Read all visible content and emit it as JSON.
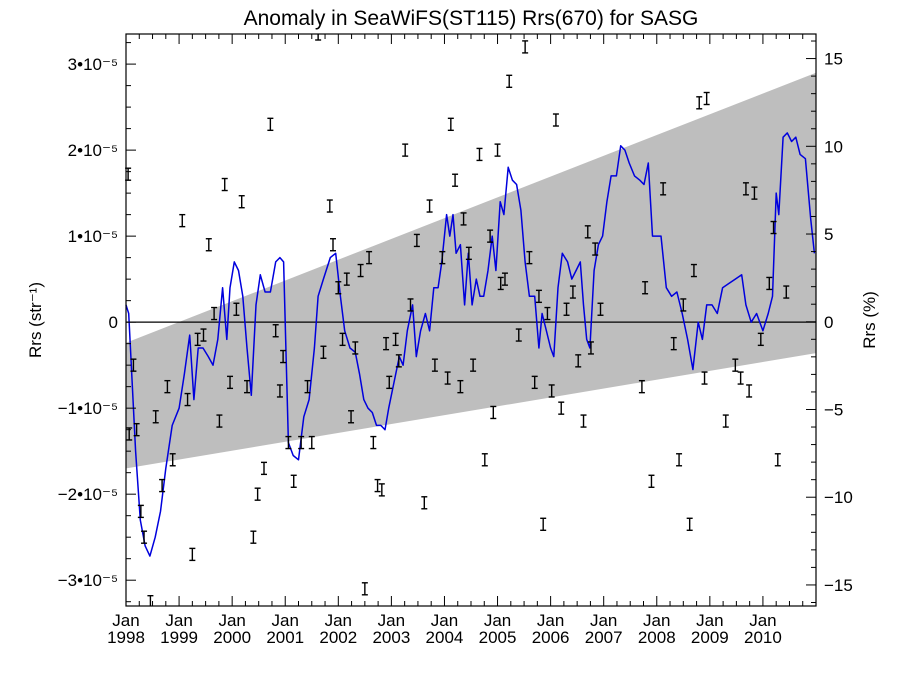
{
  "chart_data": {
    "type": "line",
    "title": "Anomaly in SeaWiFS(ST115) Rrs(670) for SASG",
    "ylabel_left": "Rrs (str⁻¹)",
    "ylabel_right": "Rrs (%)",
    "xlabel": "",
    "xlim": [
      1998.0,
      2011.0
    ],
    "ylim": [
      -3.3e-05,
      3.35e-05
    ],
    "ylim_right_percent": [
      -16.2,
      16.4
    ],
    "grid": false,
    "y_ticks_left": [
      {
        "value": -3e-05,
        "label": "−3•10⁻⁵"
      },
      {
        "value": -2e-05,
        "label": "−2•10⁻⁵"
      },
      {
        "value": -1e-05,
        "label": "−1•10⁻⁵"
      },
      {
        "value": 0,
        "label": "0"
      },
      {
        "value": 1e-05,
        "label": "1•10⁻⁵"
      },
      {
        "value": 2e-05,
        "label": "2•10⁻⁵"
      },
      {
        "value": 3e-05,
        "label": "3•10⁻⁵"
      }
    ],
    "y_ticks_right": [
      {
        "value": -15,
        "label": "−15"
      },
      {
        "value": -10,
        "label": "−10"
      },
      {
        "value": -5,
        "label": "−5"
      },
      {
        "value": 0,
        "label": "0"
      },
      {
        "value": 5,
        "label": "5"
      },
      {
        "value": 10,
        "label": "10"
      },
      {
        "value": 15,
        "label": "15"
      }
    ],
    "x_ticks": [
      {
        "value": 1998,
        "month": "Jan",
        "year": "1998"
      },
      {
        "value": 1999,
        "month": "Jan",
        "year": "1999"
      },
      {
        "value": 2000,
        "month": "Jan",
        "year": "2000"
      },
      {
        "value": 2001,
        "month": "Jan",
        "year": "2001"
      },
      {
        "value": 2002,
        "month": "Jan",
        "year": "2002"
      },
      {
        "value": 2003,
        "month": "Jan",
        "year": "2003"
      },
      {
        "value": 2004,
        "month": "Jan",
        "year": "2004"
      },
      {
        "value": 2005,
        "month": "Jan",
        "year": "2005"
      },
      {
        "value": 2006,
        "month": "Jan",
        "year": "2006"
      },
      {
        "value": 2007,
        "month": "Jan",
        "year": "2007"
      },
      {
        "value": 2008,
        "month": "Jan",
        "year": "2008"
      },
      {
        "value": 2009,
        "month": "Jan",
        "year": "2009"
      },
      {
        "value": 2010,
        "month": "Jan",
        "year": "2010"
      }
    ],
    "envelope": {
      "color": "#bebebe",
      "start": {
        "x": 1998.0,
        "upper": -2.4e-06,
        "lower": -1.7e-05
      },
      "end": {
        "x": 2011.0,
        "upper": 2.9e-05,
        "lower": -3.6e-06
      }
    },
    "zero_line": true,
    "line_series": {
      "color": "#0000dd",
      "points": [
        [
          1998.0,
          2e-06
        ],
        [
          1998.05,
          1e-06
        ],
        [
          1998.1,
          -5e-06
        ],
        [
          1998.18,
          -1.5e-05
        ],
        [
          1998.27,
          -2.3e-05
        ],
        [
          1998.36,
          -2.6e-05
        ],
        [
          1998.45,
          -2.72e-05
        ],
        [
          1998.55,
          -2.5e-05
        ],
        [
          1998.65,
          -2.2e-05
        ],
        [
          1998.75,
          -1.7e-05
        ],
        [
          1998.87,
          -1.2e-05
        ],
        [
          1999.0,
          -1e-05
        ],
        [
          1999.1,
          -6e-06
        ],
        [
          1999.2,
          -1.5e-06
        ],
        [
          1999.28,
          -9e-06
        ],
        [
          1999.36,
          -3e-06
        ],
        [
          1999.45,
          -3e-06
        ],
        [
          1999.55,
          -4e-06
        ],
        [
          1999.64,
          -5e-06
        ],
        [
          1999.73,
          -2e-06
        ],
        [
          1999.82,
          4e-06
        ],
        [
          1999.9,
          -2e-06
        ],
        [
          1999.96,
          4e-06
        ],
        [
          2000.04,
          7e-06
        ],
        [
          2000.12,
          6e-06
        ],
        [
          2000.2,
          3e-06
        ],
        [
          2000.28,
          -3e-06
        ],
        [
          2000.36,
          -8.5e-06
        ],
        [
          2000.45,
          2e-06
        ],
        [
          2000.53,
          5.5e-06
        ],
        [
          2000.62,
          3.5e-06
        ],
        [
          2000.72,
          3.5e-06
        ],
        [
          2000.82,
          7e-06
        ],
        [
          2000.9,
          7.5e-06
        ],
        [
          2000.97,
          7e-06
        ],
        [
          2001.06,
          -1.4e-05
        ],
        [
          2001.15,
          -1.55e-05
        ],
        [
          2001.25,
          -1.6e-05
        ],
        [
          2001.35,
          -1.1e-05
        ],
        [
          2001.45,
          -9e-06
        ],
        [
          2001.55,
          -3e-06
        ],
        [
          2001.62,
          3e-06
        ],
        [
          2001.72,
          5e-06
        ],
        [
          2001.85,
          7.5e-06
        ],
        [
          2001.95,
          8e-06
        ],
        [
          2002.04,
          3e-06
        ],
        [
          2002.12,
          -1e-06
        ],
        [
          2002.22,
          -3e-06
        ],
        [
          2002.32,
          -3.5e-06
        ],
        [
          2002.4,
          -6e-06
        ],
        [
          2002.48,
          -9e-06
        ],
        [
          2002.56,
          -1e-05
        ],
        [
          2002.64,
          -1.05e-05
        ],
        [
          2002.72,
          -1.2e-05
        ],
        [
          2002.8,
          -1.2e-05
        ],
        [
          2002.88,
          -1.25e-05
        ],
        [
          2002.95,
          -1e-05
        ],
        [
          2003.05,
          -7e-06
        ],
        [
          2003.15,
          -4e-06
        ],
        [
          2003.22,
          -5e-06
        ],
        [
          2003.3,
          -1e-06
        ],
        [
          2003.4,
          2e-06
        ],
        [
          2003.47,
          -4e-06
        ],
        [
          2003.55,
          -1e-06
        ],
        [
          2003.64,
          1e-06
        ],
        [
          2003.72,
          -1e-06
        ],
        [
          2003.8,
          4e-06
        ],
        [
          2003.88,
          4e-06
        ],
        [
          2003.95,
          7e-06
        ],
        [
          2004.04,
          1.25e-05
        ],
        [
          2004.1,
          1e-05
        ],
        [
          2004.16,
          1.25e-05
        ],
        [
          2004.22,
          8e-06
        ],
        [
          2004.3,
          9e-06
        ],
        [
          2004.38,
          2e-06
        ],
        [
          2004.45,
          8e-06
        ],
        [
          2004.52,
          2e-06
        ],
        [
          2004.6,
          5e-06
        ],
        [
          2004.67,
          3e-06
        ],
        [
          2004.74,
          3e-06
        ],
        [
          2004.82,
          6e-06
        ],
        [
          2004.9,
          1e-05
        ],
        [
          2004.97,
          6e-06
        ],
        [
          2005.05,
          1.4e-05
        ],
        [
          2005.12,
          1.25e-05
        ],
        [
          2005.2,
          1.8e-05
        ],
        [
          2005.28,
          1.65e-05
        ],
        [
          2005.36,
          1.6e-05
        ],
        [
          2005.44,
          1.3e-05
        ],
        [
          2005.52,
          7e-06
        ],
        [
          2005.6,
          3e-06
        ],
        [
          2005.7,
          3e-06
        ],
        [
          2005.78,
          -3e-06
        ],
        [
          2005.84,
          1e-06
        ],
        [
          2005.92,
          -1e-06
        ],
        [
          2006.0,
          -3e-06
        ],
        [
          2006.06,
          -4e-06
        ],
        [
          2006.14,
          4e-06
        ],
        [
          2006.22,
          8e-06
        ],
        [
          2006.32,
          7e-06
        ],
        [
          2006.4,
          5e-06
        ],
        [
          2006.48,
          6e-06
        ],
        [
          2006.56,
          7e-06
        ],
        [
          2006.62,
          2e-06
        ],
        [
          2006.68,
          -2e-06
        ],
        [
          2006.74,
          -3e-06
        ],
        [
          2006.82,
          6e-06
        ],
        [
          2006.9,
          9e-06
        ],
        [
          2006.98,
          1e-05
        ],
        [
          2007.06,
          1.4e-05
        ],
        [
          2007.14,
          1.7e-05
        ],
        [
          2007.24,
          1.7e-05
        ],
        [
          2007.32,
          2.05e-05
        ],
        [
          2007.4,
          2e-05
        ],
        [
          2007.48,
          1.85e-05
        ],
        [
          2007.58,
          1.7e-05
        ],
        [
          2007.68,
          1.65e-05
        ],
        [
          2007.76,
          1.6e-05
        ],
        [
          2007.84,
          1.85e-05
        ],
        [
          2007.92,
          1e-05
        ],
        [
          2008.0,
          1e-05
        ],
        [
          2008.08,
          1e-05
        ],
        [
          2008.18,
          4e-06
        ],
        [
          2008.28,
          3e-06
        ],
        [
          2008.38,
          3.5e-06
        ],
        [
          2008.48,
          1e-06
        ],
        [
          2008.58,
          -2e-06
        ],
        [
          2008.68,
          -5.5e-06
        ],
        [
          2008.78,
          0.0
        ],
        [
          2008.86,
          -2e-06
        ],
        [
          2008.94,
          2e-06
        ],
        [
          2009.04,
          2e-06
        ],
        [
          2009.14,
          1e-06
        ],
        [
          2009.24,
          4e-06
        ],
        [
          2009.36,
          4.5e-06
        ],
        [
          2009.48,
          5e-06
        ],
        [
          2009.6,
          5.5e-06
        ],
        [
          2009.68,
          2e-06
        ],
        [
          2009.78,
          0.0
        ],
        [
          2009.88,
          1e-06
        ],
        [
          2010.0,
          -1e-06
        ],
        [
          2010.1,
          1e-06
        ],
        [
          2010.18,
          3e-06
        ],
        [
          2010.25,
          1.5e-05
        ],
        [
          2010.3,
          1.25e-05
        ],
        [
          2010.38,
          2.15e-05
        ],
        [
          2010.46,
          2.2e-05
        ],
        [
          2010.54,
          2.1e-05
        ],
        [
          2010.62,
          2.15e-05
        ],
        [
          2010.7,
          1.95e-05
        ],
        [
          2010.8,
          1.9e-05
        ],
        [
          2010.9,
          1.2e-05
        ],
        [
          2010.97,
          8e-06
        ]
      ]
    },
    "error_points": {
      "color": "#000000",
      "points": [
        [
          1998.04,
          1.72e-05
        ],
        [
          1998.06,
          -1.3e-05
        ],
        [
          1998.14,
          -5e-06
        ],
        [
          1998.2,
          -1.25e-05
        ],
        [
          1998.28,
          -2.2e-05
        ],
        [
          1998.34,
          -2.5e-05
        ],
        [
          1998.46,
          -3.25e-05
        ],
        [
          1998.56,
          -1.1e-05
        ],
        [
          1998.68,
          -1.9e-05
        ],
        [
          1998.78,
          -7.5e-06
        ],
        [
          1998.88,
          -1.6e-05
        ],
        [
          1999.06,
          1.18e-05
        ],
        [
          1999.16,
          -9e-06
        ],
        [
          1999.25,
          -2.7e-05
        ],
        [
          1999.35,
          -2e-06
        ],
        [
          1999.46,
          -1.5e-06
        ],
        [
          1999.56,
          9e-06
        ],
        [
          1999.66,
          1e-06
        ],
        [
          1999.76,
          -1.15e-05
        ],
        [
          1999.86,
          1.6e-05
        ],
        [
          1999.96,
          -7e-06
        ],
        [
          2000.08,
          1.5e-06
        ],
        [
          2000.18,
          1.4e-05
        ],
        [
          2000.28,
          -7.5e-06
        ],
        [
          2000.4,
          -2.5e-05
        ],
        [
          2000.48,
          -2e-05
        ],
        [
          2000.6,
          -1.7e-05
        ],
        [
          2000.72,
          2.3e-05
        ],
        [
          2000.82,
          -1e-06
        ],
        [
          2000.9,
          -8e-06
        ],
        [
          2000.96,
          -4e-06
        ],
        [
          2001.06,
          -1.4e-05
        ],
        [
          2001.16,
          -1.85e-05
        ],
        [
          2001.3,
          -1.4e-05
        ],
        [
          2001.42,
          -7.5e-06
        ],
        [
          2001.5,
          -1.4e-05
        ],
        [
          2001.62,
          3.35e-05
        ],
        [
          2001.72,
          -3.5e-06
        ],
        [
          2001.84,
          1.35e-05
        ],
        [
          2001.9,
          9e-06
        ],
        [
          2002.0,
          4e-06
        ],
        [
          2002.08,
          -2e-06
        ],
        [
          2002.16,
          5e-06
        ],
        [
          2002.24,
          -1.1e-05
        ],
        [
          2002.32,
          -3e-06
        ],
        [
          2002.42,
          6e-06
        ],
        [
          2002.5,
          -3.1e-05
        ],
        [
          2002.58,
          7.5e-06
        ],
        [
          2002.66,
          -1.4e-05
        ],
        [
          2002.74,
          -1.9e-05
        ],
        [
          2002.82,
          -1.95e-05
        ],
        [
          2002.9,
          -2.5e-06
        ],
        [
          2002.96,
          -7e-06
        ],
        [
          2003.08,
          -2e-06
        ],
        [
          2003.14,
          -4.5e-06
        ],
        [
          2003.26,
          2e-05
        ],
        [
          2003.36,
          2e-06
        ],
        [
          2003.48,
          9.5e-06
        ],
        [
          2003.62,
          -2.1e-05
        ],
        [
          2003.72,
          1.35e-05
        ],
        [
          2003.82,
          -5e-06
        ],
        [
          2003.96,
          7.5e-06
        ],
        [
          2004.06,
          -6.5e-06
        ],
        [
          2004.12,
          2.3e-05
        ],
        [
          2004.2,
          1.65e-05
        ],
        [
          2004.3,
          -7.5e-06
        ],
        [
          2004.36,
          1.2e-05
        ],
        [
          2004.46,
          8e-06
        ],
        [
          2004.54,
          -5e-06
        ],
        [
          2004.66,
          1.95e-05
        ],
        [
          2004.76,
          -1.6e-05
        ],
        [
          2004.86,
          1e-05
        ],
        [
          2004.92,
          -1.05e-05
        ],
        [
          2005.0,
          2e-05
        ],
        [
          2005.06,
          4.5e-06
        ],
        [
          2005.14,
          5e-06
        ],
        [
          2005.22,
          2.8e-05
        ],
        [
          2005.4,
          -1.5e-06
        ],
        [
          2005.52,
          3.2e-05
        ],
        [
          2005.6,
          7.5e-06
        ],
        [
          2005.7,
          -7e-06
        ],
        [
          2005.78,
          3e-06
        ],
        [
          2005.86,
          -2.35e-05
        ],
        [
          2005.94,
          1e-06
        ],
        [
          2006.02,
          -8e-06
        ],
        [
          2006.1,
          2.35e-05
        ],
        [
          2006.2,
          -1e-05
        ],
        [
          2006.3,
          1.5e-06
        ],
        [
          2006.42,
          3.5e-06
        ],
        [
          2006.52,
          -4.5e-06
        ],
        [
          2006.62,
          -1.15e-05
        ],
        [
          2006.7,
          1.05e-05
        ],
        [
          2006.76,
          -3e-06
        ],
        [
          2006.84,
          8.5e-06
        ],
        [
          2006.94,
          1.5e-06
        ],
        [
          2007.72,
          -7.5e-06
        ],
        [
          2007.78,
          4e-06
        ],
        [
          2007.9,
          -1.85e-05
        ],
        [
          2008.12,
          1.55e-05
        ],
        [
          2008.32,
          -2.5e-06
        ],
        [
          2008.42,
          -1.6e-05
        ],
        [
          2008.5,
          2e-06
        ],
        [
          2008.62,
          -2.35e-05
        ],
        [
          2008.7,
          6e-06
        ],
        [
          2008.8,
          2.55e-05
        ],
        [
          2008.9,
          -6.5e-06
        ],
        [
          2008.94,
          2.6e-05
        ],
        [
          2009.3,
          -1.15e-05
        ],
        [
          2009.48,
          -5e-06
        ],
        [
          2009.58,
          -6.5e-06
        ],
        [
          2009.68,
          1.55e-05
        ],
        [
          2009.74,
          -8e-06
        ],
        [
          2009.84,
          1.5e-05
        ],
        [
          2009.96,
          -2e-06
        ],
        [
          2010.12,
          4.5e-06
        ],
        [
          2010.2,
          1.1e-05
        ],
        [
          2010.28,
          -1.6e-05
        ],
        [
          2010.44,
          3.5e-06
        ]
      ]
    }
  }
}
